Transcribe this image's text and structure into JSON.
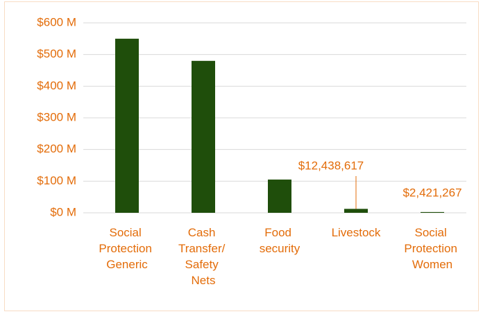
{
  "chart_data": {
    "type": "bar",
    "categories": [
      "Social Protection Generic",
      "Cash Transfer/ Safety Nets",
      "Food security",
      "Livestock",
      "Social Protection Women"
    ],
    "values": [
      550000000,
      480000000,
      105000000,
      12438617,
      2421267
    ],
    "value_labels": [
      null,
      null,
      null,
      "$12,438,617",
      "$2,421,267"
    ],
    "color": "#1f4e0b",
    "ylim": [
      0,
      600000000
    ],
    "yticks": [
      {
        "value": 0,
        "label": "$0 M"
      },
      {
        "value": 100000000,
        "label": "$100 M"
      },
      {
        "value": 200000000,
        "label": "$200 M"
      },
      {
        "value": 300000000,
        "label": "$300 M"
      },
      {
        "value": 400000000,
        "label": "$400 M"
      },
      {
        "value": 500000000,
        "label": "$500 M"
      },
      {
        "value": 600000000,
        "label": "$600 M"
      }
    ],
    "grid": true
  }
}
